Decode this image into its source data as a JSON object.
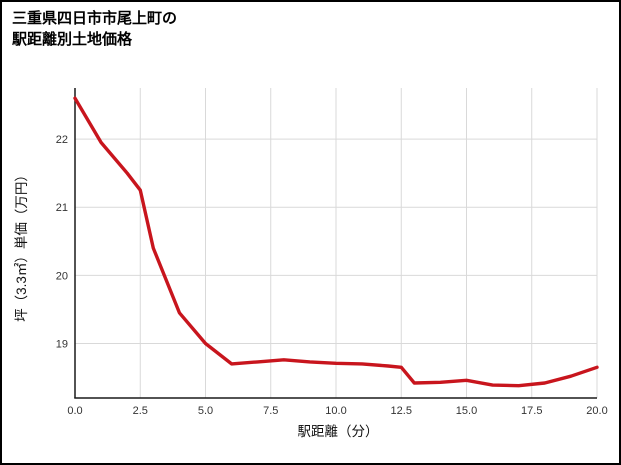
{
  "title": {
    "line1": "三重県四日市市尾上町の",
    "line2": "駅距離別土地価格"
  },
  "chart_data": {
    "type": "line",
    "title": "三重県四日市市尾上町の駅距離別土地価格",
    "xlabel": "駅距離（分）",
    "ylabel": "坪（3.3㎡）単価（万円）",
    "x": [
      0,
      1,
      2,
      2.5,
      3,
      4,
      5,
      6,
      7,
      8,
      9,
      10,
      11,
      12,
      12.5,
      13,
      14,
      15,
      16,
      17,
      18,
      19,
      20
    ],
    "values": [
      22.6,
      21.95,
      21.5,
      21.25,
      20.4,
      19.45,
      19.0,
      18.7,
      18.73,
      18.76,
      18.73,
      18.71,
      18.7,
      18.67,
      18.65,
      18.42,
      18.43,
      18.46,
      18.39,
      18.38,
      18.42,
      18.52,
      18.65
    ],
    "xlim": [
      0,
      20
    ],
    "ylim": [
      18.2,
      22.75
    ],
    "xticks": [
      0,
      2.5,
      5,
      7.5,
      10,
      12.5,
      15,
      17.5,
      20
    ],
    "xtick_labels": [
      "0.0",
      "2.5",
      "5.0",
      "7.5",
      "10.0",
      "12.5",
      "15.0",
      "17.5",
      "20.0"
    ],
    "yticks": [
      19,
      20,
      21,
      22
    ],
    "ytick_labels": [
      "19",
      "20",
      "21",
      "22"
    ],
    "line_color": "#c8151d",
    "grid": true,
    "legend": "none"
  }
}
